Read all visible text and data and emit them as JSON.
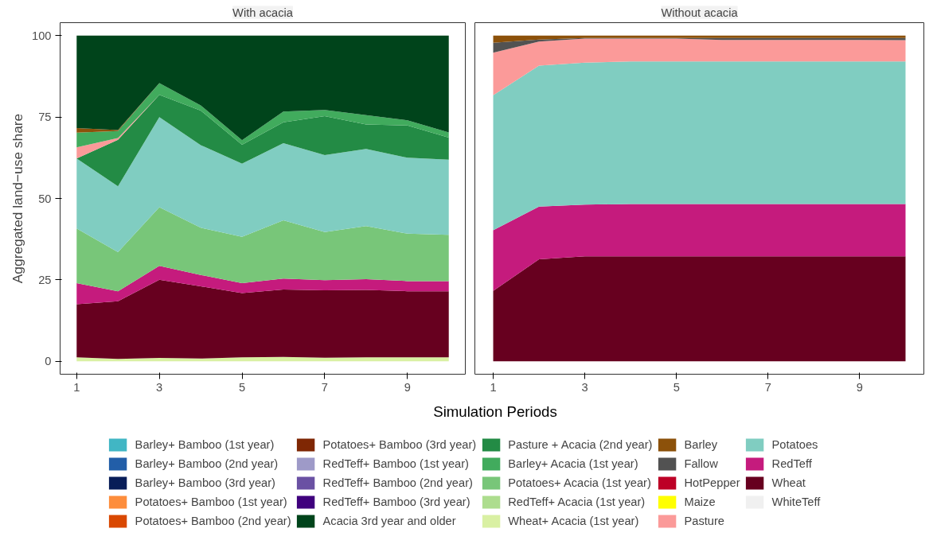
{
  "chart_data": [
    {
      "type": "area",
      "title": "With acacia",
      "xlabel": "Simulation Periods",
      "ylabel": "Aggregated land−use share",
      "stacked": true,
      "legend": "bottom",
      "grid": false,
      "x": [
        1,
        2,
        3,
        4,
        5,
        6,
        7,
        8,
        9,
        10
      ],
      "xlim": [
        0.6,
        10.4
      ],
      "xticks": [
        1,
        3,
        5,
        7,
        9
      ],
      "ylim": [
        -4,
        104
      ],
      "yticks": [
        0,
        25,
        50,
        75,
        100
      ],
      "series": [
        {
          "name": "Wheat+ Acacia (1st year)",
          "color": "#d9f0a3",
          "values": [
            1.2,
            0.7,
            1.0,
            0.8,
            1.2,
            1.3,
            1.1,
            1.2,
            1.2,
            1.2
          ]
        },
        {
          "name": "Wheat",
          "color": "#67001f",
          "values": [
            16.3,
            17.7,
            24.0,
            22.2,
            19.7,
            20.7,
            20.7,
            20.7,
            20.3,
            20.3
          ]
        },
        {
          "name": "RedTeff",
          "color": "#c51b7d",
          "values": [
            6.5,
            3.1,
            4.3,
            3.5,
            3.1,
            3.4,
            3.1,
            3.3,
            3.1,
            3.1
          ]
        },
        {
          "name": "Potatoes+ Acacia (1st year)",
          "color": "#78c679",
          "values": [
            16.8,
            12.0,
            18.0,
            14.5,
            14.2,
            17.9,
            14.8,
            16.3,
            14.6,
            14.2
          ]
        },
        {
          "name": "Potatoes",
          "color": "#80cdc1",
          "values": [
            21.5,
            20.2,
            27.7,
            25.4,
            22.5,
            23.7,
            23.6,
            23.7,
            23.3,
            23.1
          ]
        },
        {
          "name": "Pasture + Acacia (2nd year)",
          "color": "#238b45",
          "values": [
            0,
            14.3,
            6.8,
            10.6,
            5.8,
            6.4,
            12.0,
            7.5,
            9.9,
            6.8
          ]
        },
        {
          "name": "Pasture",
          "color": "#fb9a99",
          "values": [
            3.4,
            0.6,
            0,
            0,
            0,
            0,
            0,
            0,
            0,
            0
          ]
        },
        {
          "name": "Barley+ Acacia (1st year)",
          "color": "#41ab5d",
          "values": [
            4.5,
            2.1,
            3.6,
            1.6,
            1.4,
            3.3,
            1.9,
            2.9,
            1.6,
            1.6
          ]
        },
        {
          "name": "Barley",
          "color": "#8c510a",
          "values": [
            1.4,
            0.3,
            0,
            0,
            0,
            0,
            0,
            0,
            0,
            0
          ]
        },
        {
          "name": "Acacia 3rd year and older",
          "color": "#00441b",
          "values": [
            28.4,
            29.0,
            14.6,
            21.4,
            32.1,
            23.3,
            22.8,
            24.4,
            26.0,
            29.7
          ]
        },
        {
          "name": "Barley+ Bamboo (1st year)",
          "color": "#41b6c4",
          "values": [
            null,
            null,
            null,
            null,
            null,
            null,
            null,
            null,
            null,
            null
          ]
        },
        {
          "name": "Barley+ Bamboo (2nd year)",
          "color": "#225ea8",
          "values": [
            null,
            null,
            null,
            null,
            null,
            null,
            null,
            null,
            null,
            null
          ]
        },
        {
          "name": "Barley+ Bamboo (3rd year)",
          "color": "#081d58",
          "values": [
            null,
            null,
            null,
            null,
            null,
            null,
            null,
            null,
            null,
            null
          ]
        },
        {
          "name": "Potatoes+ Bamboo (1st year)",
          "color": "#fd8d3c",
          "values": [
            null,
            null,
            null,
            null,
            null,
            null,
            null,
            null,
            null,
            null
          ]
        },
        {
          "name": "Potatoes+ Bamboo (2nd year)",
          "color": "#d94801",
          "values": [
            null,
            null,
            null,
            null,
            null,
            null,
            null,
            null,
            null,
            null
          ]
        },
        {
          "name": "Potatoes+ Bamboo (3rd year)",
          "color": "#7f2704",
          "values": [
            null,
            null,
            null,
            null,
            null,
            null,
            null,
            null,
            null,
            null
          ]
        },
        {
          "name": "RedTeff+ Bamboo (1st year)",
          "color": "#9e9ac8",
          "values": [
            null,
            null,
            null,
            null,
            null,
            null,
            null,
            null,
            null,
            null
          ]
        },
        {
          "name": "RedTeff+ Bamboo (2nd year)",
          "color": "#6a51a3",
          "values": [
            null,
            null,
            null,
            null,
            null,
            null,
            null,
            null,
            null,
            null
          ]
        },
        {
          "name": "RedTeff+ Bamboo (3rd year)",
          "color": "#3f007d",
          "values": [
            null,
            null,
            null,
            null,
            null,
            null,
            null,
            null,
            null,
            null
          ]
        },
        {
          "name": "RedTeff+ Acacia (1st year)",
          "color": "#addd8e",
          "values": [
            null,
            null,
            null,
            null,
            null,
            null,
            null,
            null,
            null,
            null
          ]
        },
        {
          "name": "Fallow",
          "color": "#525252",
          "values": [
            null,
            null,
            null,
            null,
            null,
            null,
            null,
            null,
            null,
            null
          ]
        },
        {
          "name": "HotPepper",
          "color": "#bd0026",
          "values": [
            null,
            null,
            null,
            null,
            null,
            null,
            null,
            null,
            null,
            null
          ]
        },
        {
          "name": "Maize",
          "color": "#ffff00",
          "values": [
            null,
            null,
            null,
            null,
            null,
            null,
            null,
            null,
            null,
            null
          ]
        },
        {
          "name": "WhiteTeff",
          "color": "#f0f0f0",
          "values": [
            null,
            null,
            null,
            null,
            null,
            null,
            null,
            null,
            null,
            null
          ]
        }
      ]
    },
    {
      "type": "area",
      "title": "Without acacia",
      "stacked": true,
      "grid": false,
      "tick_labels": "x",
      "x": [
        1,
        2,
        3,
        4,
        5,
        6,
        7,
        8,
        9,
        10
      ],
      "xlim": [
        0.6,
        10.4
      ],
      "xticks": [
        1,
        3,
        5,
        7,
        9
      ],
      "ylim": [
        -4,
        104
      ],
      "series": [
        {
          "color": "#67001f",
          "values": [
            21.6,
            31.3,
            32.2,
            32.2,
            32.2,
            32.2,
            32.2,
            32.2,
            32.2,
            32.2
          ]
        },
        {
          "color": "#c51b7d",
          "values": [
            18.6,
            16.2,
            15.9,
            16.1,
            16.1,
            16.1,
            16.1,
            16.1,
            16.1,
            16.1
          ]
        },
        {
          "color": "#80cdc1",
          "values": [
            41.5,
            43.3,
            43.6,
            43.8,
            43.8,
            43.8,
            43.8,
            43.8,
            43.8,
            43.8
          ]
        },
        {
          "color": "#fb9a99",
          "values": [
            13.1,
            7.4,
            7.4,
            7.0,
            7.0,
            6.6,
            6.6,
            6.6,
            6.6,
            6.5
          ]
        },
        {
          "color": "#525252",
          "values": [
            3.0,
            0.6,
            0.2,
            0.2,
            0.2,
            0.6,
            0.6,
            0.6,
            0.6,
            0.7
          ]
        },
        {
          "color": "#8c510a",
          "values": [
            2.2,
            1.2,
            0.7,
            0.7,
            0.7,
            0.7,
            0.7,
            0.7,
            0.7,
            0.7
          ]
        }
      ]
    }
  ]
}
